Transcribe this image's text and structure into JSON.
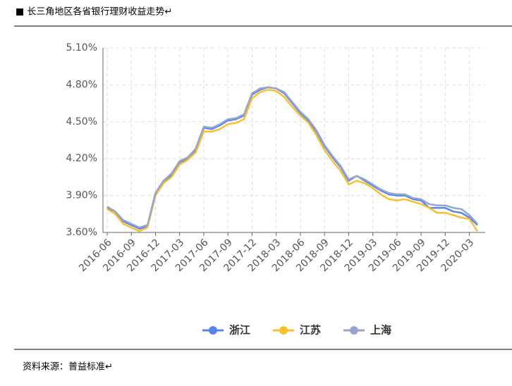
{
  "header": {
    "title": "■ 长三角地区各省银行理财收益走势↵"
  },
  "chart_data": {
    "type": "line",
    "categories": [
      "2016-06",
      null,
      null,
      "2016-09",
      null,
      null,
      "2016-12",
      null,
      null,
      "2017-03",
      null,
      null,
      "2017-06",
      null,
      null,
      "2017-09",
      null,
      null,
      "2017-12",
      null,
      null,
      "2018-03",
      null,
      null,
      "2018-06",
      null,
      null,
      "2018-09",
      null,
      null,
      "2018-12",
      null,
      null,
      "2019-03",
      null,
      null,
      "2019-06",
      null,
      null,
      "2019-09",
      null,
      null,
      "2019-12",
      null,
      null,
      "2020-03",
      null
    ],
    "series": [
      {
        "name": "浙江",
        "color": "#5585e8",
        "values": [
          3.8,
          3.77,
          3.69,
          3.66,
          3.63,
          3.65,
          3.92,
          4.01,
          4.07,
          4.17,
          4.2,
          4.27,
          4.45,
          4.44,
          4.47,
          4.51,
          4.52,
          4.55,
          4.72,
          4.76,
          4.78,
          4.77,
          4.73,
          4.65,
          4.57,
          4.51,
          4.42,
          4.3,
          4.21,
          4.13,
          4.02,
          4.06,
          4.02,
          3.98,
          3.94,
          3.91,
          3.9,
          3.9,
          3.87,
          3.86,
          3.8,
          3.8,
          3.8,
          3.77,
          3.76,
          3.72,
          3.66
        ]
      },
      {
        "name": "江苏",
        "color": "#f7c02c",
        "values": [
          3.79,
          3.75,
          3.67,
          3.64,
          3.61,
          3.64,
          3.9,
          4.0,
          4.05,
          4.15,
          4.19,
          4.25,
          4.42,
          4.42,
          4.44,
          4.48,
          4.49,
          4.52,
          4.69,
          4.74,
          4.76,
          4.75,
          4.7,
          4.62,
          4.55,
          4.49,
          4.39,
          4.27,
          4.18,
          4.1,
          3.99,
          4.02,
          4.0,
          3.96,
          3.91,
          3.87,
          3.86,
          3.87,
          3.85,
          3.83,
          3.8,
          3.76,
          3.76,
          3.74,
          3.72,
          3.71,
          3.61
        ]
      },
      {
        "name": "上海",
        "color": "#97a4cf",
        "values": [
          3.81,
          3.77,
          3.7,
          3.67,
          3.64,
          3.66,
          3.92,
          4.02,
          4.08,
          4.18,
          4.21,
          4.28,
          4.46,
          4.45,
          4.48,
          4.52,
          4.53,
          4.56,
          4.73,
          4.77,
          4.78,
          4.77,
          4.74,
          4.66,
          4.58,
          4.52,
          4.43,
          4.31,
          4.22,
          4.14,
          4.03,
          4.06,
          4.03,
          3.99,
          3.95,
          3.92,
          3.91,
          3.91,
          3.88,
          3.87,
          3.83,
          3.82,
          3.82,
          3.8,
          3.79,
          3.74,
          3.67
        ]
      }
    ],
    "ylim": [
      3.6,
      5.1
    ],
    "yticks": [
      {
        "value": 3.6,
        "label": "3.60%"
      },
      {
        "value": 3.9,
        "label": "3.90%"
      },
      {
        "value": 4.2,
        "label": "4.20%"
      },
      {
        "value": 4.5,
        "label": "4.50%"
      },
      {
        "value": 4.8,
        "label": "4.80%"
      },
      {
        "value": 5.1,
        "label": "5.10%"
      }
    ],
    "grid": true
  },
  "footer": {
    "source": "资料来源：普益标准↵"
  }
}
